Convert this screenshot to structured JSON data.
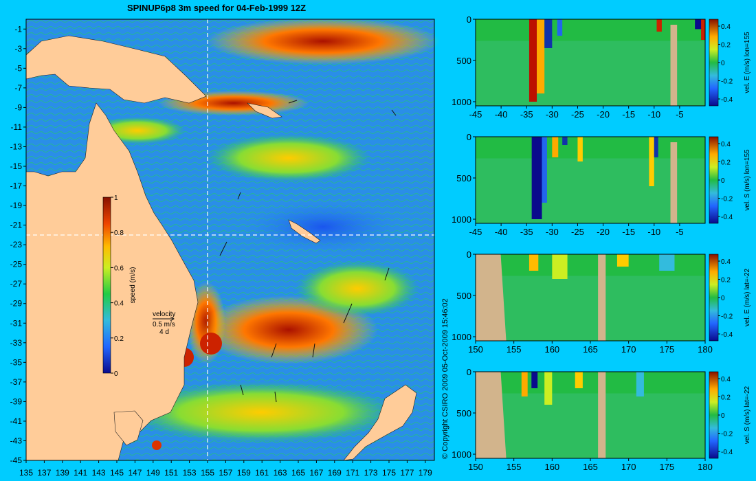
{
  "title": "SPINUP6p8 3m speed for 04-Feb-1999 12Z",
  "copyright": "© Copyright CSIRO 2009   05-Oct-2009 15:46:02",
  "chart_data": [
    {
      "type": "heatmap",
      "title": "SPINUP6p8 3m speed for 04-Feb-1999 12Z",
      "x_ticks": [
        "135",
        "137",
        "139",
        "141",
        "143",
        "145",
        "147",
        "149",
        "151",
        "153",
        "155",
        "157",
        "159",
        "161",
        "163",
        "165",
        "167",
        "169",
        "171",
        "173",
        "175",
        "177",
        "179"
      ],
      "y_ticks": [
        "-1",
        "-3",
        "-5",
        "-7",
        "-9",
        "-11",
        "-13",
        "-15",
        "-17",
        "-19",
        "-21",
        "-23",
        "-25",
        "-27",
        "-29",
        "-31",
        "-33",
        "-35",
        "-37",
        "-39",
        "-41",
        "-43",
        "-45"
      ],
      "xlim": [
        135,
        180
      ],
      "ylim": [
        -45,
        0
      ],
      "section_lines": {
        "lon": 155,
        "lat": -22
      },
      "colorbar": {
        "label": "speed (m/s)",
        "ticks": [
          "0",
          "0.2",
          "0.4",
          "0.6",
          "0.8",
          "1"
        ],
        "range": [
          0,
          1
        ]
      },
      "vector_key": {
        "title": "velocity",
        "value": "0.5 m/s",
        "duration": "4 d"
      }
    },
    {
      "type": "heatmap",
      "x_ticks": [
        "-45",
        "-40",
        "-35",
        "-30",
        "-25",
        "-20",
        "-15",
        "-10",
        "-5"
      ],
      "y_ticks": [
        "0",
        "500",
        "1000"
      ],
      "xlim": [
        -45,
        0
      ],
      "ylim": [
        1050,
        0
      ],
      "colorbar": {
        "label": "vel. E (m/s) lon=155",
        "ticks": [
          "0.4",
          "0.2",
          "0",
          "-0.2",
          "-0.4"
        ]
      }
    },
    {
      "type": "heatmap",
      "x_ticks": [
        "-45",
        "-40",
        "-35",
        "-30",
        "-25",
        "-20",
        "-15",
        "-10",
        "-5"
      ],
      "y_ticks": [
        "0",
        "500",
        "1000"
      ],
      "xlim": [
        -45,
        0
      ],
      "ylim": [
        1050,
        0
      ],
      "colorbar": {
        "label": "vel. S (m/s) lon=155",
        "ticks": [
          "0.4",
          "0.2",
          "0",
          "-0.2",
          "-0.4"
        ]
      }
    },
    {
      "type": "heatmap",
      "x_ticks": [
        "150",
        "155",
        "160",
        "165",
        "170",
        "175",
        "180"
      ],
      "y_ticks": [
        "0",
        "500",
        "1000"
      ],
      "xlim": [
        150,
        180
      ],
      "ylim": [
        1050,
        0
      ],
      "colorbar": {
        "label": "vel. E (m/s) lat=-22",
        "ticks": [
          "0.4",
          "0.2",
          "0",
          "-0.2",
          "-0.4"
        ]
      }
    },
    {
      "type": "heatmap",
      "x_ticks": [
        "150",
        "155",
        "160",
        "165",
        "170",
        "175",
        "180"
      ],
      "y_ticks": [
        "0",
        "500",
        "1000"
      ],
      "xlim": [
        150,
        180
      ],
      "ylim": [
        1050,
        0
      ],
      "colorbar": {
        "label": "vel. S (m/s) lat=-22",
        "ticks": [
          "0.4",
          "0.2",
          "0",
          "-0.2",
          "-0.4"
        ]
      }
    }
  ]
}
